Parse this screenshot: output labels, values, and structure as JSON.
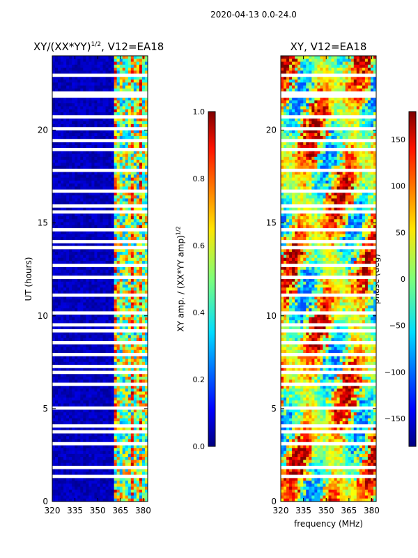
{
  "figure": {
    "suptitle": "2020-04-13 0.0-24.0"
  },
  "chart_data": [
    {
      "type": "heatmap",
      "title_main": "XY/(XX*YY)",
      "title_sup": "1/2",
      "title_rest": ", V12=EA18",
      "xlabel": "",
      "ylabel": "UT (hours)",
      "xlim": [
        320,
        383
      ],
      "ylim": [
        0,
        24
      ],
      "xticks": [
        "320",
        "335",
        "350",
        "365",
        "380"
      ],
      "xtick_values": [
        320,
        335,
        350,
        365,
        380
      ],
      "yticks": [
        "0",
        "5",
        "10",
        "15",
        "20"
      ],
      "ytick_values": [
        0,
        5,
        10,
        15,
        20
      ],
      "colorbar": {
        "label_main": "XY amp. / (XX*YY amp)",
        "label_sup": "1/2",
        "range": [
          0.0,
          1.0
        ],
        "ticks": [
          "0.0",
          "0.2",
          "0.4",
          "0.6",
          "0.8",
          "1.0"
        ],
        "tick_values": [
          0.0,
          0.2,
          0.4,
          0.6,
          0.8,
          1.0
        ]
      }
    },
    {
      "type": "heatmap",
      "title": "XY, V12=EA18",
      "xlabel": "frequency (MHz)",
      "ylabel": "",
      "xlim": [
        320,
        383
      ],
      "ylim": [
        0,
        24
      ],
      "xticks": [
        "320",
        "335",
        "350",
        "365",
        "380"
      ],
      "xtick_values": [
        320,
        335,
        350,
        365,
        380
      ],
      "yticks": [
        "0",
        "5",
        "10",
        "15",
        "20"
      ],
      "ytick_values": [
        0,
        5,
        10,
        15,
        20
      ],
      "colorbar": {
        "label": "phase (deg)",
        "range": [
          -180,
          180
        ],
        "ticks": [
          "150",
          "100",
          "50",
          "0",
          "−50",
          "−100",
          "−150"
        ],
        "tick_values": [
          150,
          100,
          50,
          0,
          -50,
          -100,
          -150
        ]
      }
    }
  ]
}
